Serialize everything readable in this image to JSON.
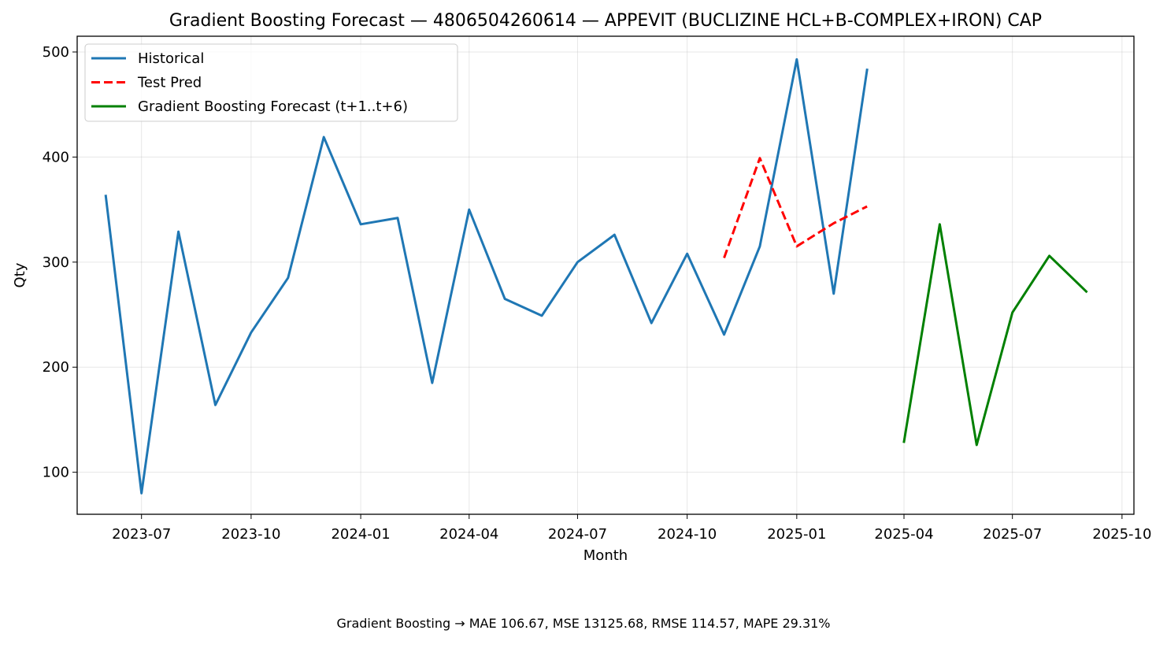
{
  "chart_data": {
    "type": "line",
    "title": "Gradient Boosting Forecast — 4806504260614 — APPEVIT (BUCLIZINE HCL+B-COMPLEX+IRON) CAP",
    "xlabel": "Month",
    "ylabel": "Qty",
    "ylim": [
      60,
      515
    ],
    "xlim": [
      "2023-05-08",
      "2025-10-11"
    ],
    "grid": true,
    "legend_position": "top-left",
    "x_ticks": [
      "2023-07",
      "2023-10",
      "2024-01",
      "2024-04",
      "2024-07",
      "2024-10",
      "2025-01",
      "2025-04",
      "2025-07",
      "2025-10"
    ],
    "y_ticks": [
      100,
      200,
      300,
      400,
      500
    ],
    "series": [
      {
        "name": "Historical",
        "color": "#1f77b4",
        "dash": "solid",
        "points": [
          [
            "2023-06-01",
            363
          ],
          [
            "2023-07-01",
            80
          ],
          [
            "2023-08-01",
            329
          ],
          [
            "2023-09-01",
            164
          ],
          [
            "2023-10-01",
            233
          ],
          [
            "2023-11-01",
            285
          ],
          [
            "2023-12-01",
            419
          ],
          [
            "2024-01-01",
            336
          ],
          [
            "2024-02-01",
            342
          ],
          [
            "2024-03-01",
            185
          ],
          [
            "2024-04-01",
            350
          ],
          [
            "2024-05-01",
            265
          ],
          [
            "2024-06-01",
            249
          ],
          [
            "2024-07-01",
            300
          ],
          [
            "2024-08-01",
            326
          ],
          [
            "2024-09-01",
            242
          ],
          [
            "2024-10-01",
            308
          ],
          [
            "2024-11-01",
            231
          ],
          [
            "2024-12-01",
            315
          ],
          [
            "2025-01-01",
            493
          ],
          [
            "2025-02-01",
            270
          ],
          [
            "2025-03-01",
            483
          ]
        ]
      },
      {
        "name": "Test Pred",
        "color": "#ff0000",
        "dash": "dashed",
        "points": [
          [
            "2024-11-01",
            304
          ],
          [
            "2024-12-01",
            399
          ],
          [
            "2025-01-01",
            315
          ],
          [
            "2025-02-01",
            337
          ],
          [
            "2025-03-01",
            353
          ]
        ]
      },
      {
        "name": "Gradient Boosting Forecast (t+1..t+6)",
        "color": "#008000",
        "dash": "solid",
        "points": [
          [
            "2025-04-01",
            129
          ],
          [
            "2025-05-01",
            336
          ],
          [
            "2025-06-01",
            126
          ],
          [
            "2025-07-01",
            252
          ],
          [
            "2025-08-01",
            306
          ],
          [
            "2025-09-01",
            272
          ]
        ]
      }
    ]
  },
  "footer": {
    "metrics": "Gradient Boosting → MAE 106.67, MSE 13125.68, RMSE 114.57, MAPE 29.31%"
  }
}
